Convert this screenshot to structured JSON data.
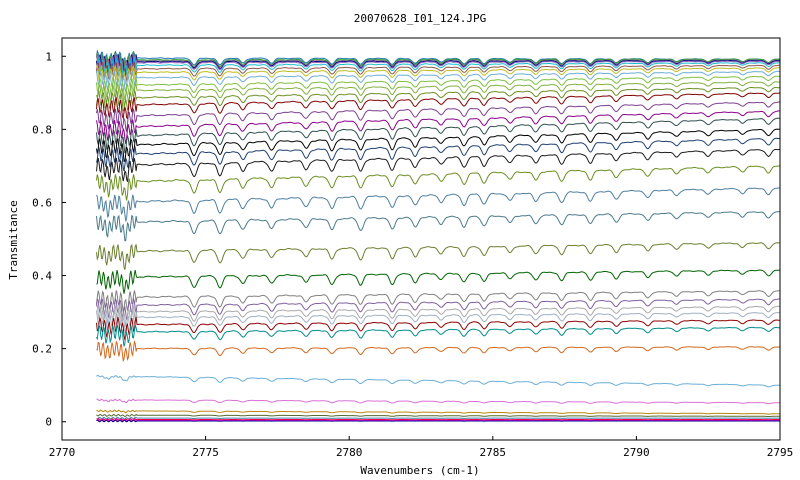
{
  "chart_data": {
    "type": "line",
    "title": "20070628_I01_124.JPG",
    "xlabel": "Wavenumbers (cm-1)",
    "ylabel": "Transmitance",
    "xlim": [
      2770,
      2795
    ],
    "ylim": [
      -0.05,
      1.05
    ],
    "x_data_range": [
      2771.2,
      2795
    ],
    "xticks": [
      2770,
      2775,
      2780,
      2785,
      2790,
      2795
    ],
    "xtick_labels": [
      "2770",
      "2775",
      "2780",
      "2785",
      "2790",
      "2795"
    ],
    "yticks": [
      0,
      0.2,
      0.4,
      0.6,
      0.8,
      1
    ],
    "ytick_labels": [
      "0",
      "0.2",
      "0.4",
      "0.6",
      "0.8",
      "1"
    ],
    "grid": false,
    "legend": "none",
    "absorption_lines_cm1": [
      2771.6,
      2772.2,
      2774.6,
      2775.5,
      2776.3,
      2777.3,
      2778.5,
      2779.4,
      2780.4,
      2781.5,
      2782.3,
      2783.2,
      2784.0,
      2784.7,
      2785.6,
      2786.5,
      2787.4,
      2788.4,
      2789.3,
      2790.4,
      2791.4,
      2792.5,
      2793.7,
      2794.6
    ],
    "series": [
      {
        "color": "#1f77b4",
        "values": [
          0.995,
          0.992
        ]
      },
      {
        "color": "#2ca02c",
        "values": [
          0.99,
          0.992
        ]
      },
      {
        "color": "#7f7f7f",
        "values": [
          0.988,
          0.99
        ]
      },
      {
        "color": "#000080",
        "values": [
          0.985,
          0.988
        ]
      },
      {
        "color": "#9467bd",
        "values": [
          0.982,
          0.986
        ]
      },
      {
        "color": "#17becf",
        "values": [
          0.975,
          0.982
        ]
      },
      {
        "color": "#8c564b",
        "values": [
          0.965,
          0.975
        ]
      },
      {
        "color": "#bcbd22",
        "values": [
          0.955,
          0.968
        ]
      },
      {
        "color": "#6baed6",
        "values": [
          0.94,
          0.958
        ]
      },
      {
        "color": "#7fbf3f",
        "values": [
          0.92,
          0.945
        ]
      },
      {
        "color": "#80b040",
        "values": [
          0.905,
          0.93
        ]
      },
      {
        "color": "#6b8e23",
        "values": [
          0.885,
          0.915
        ]
      },
      {
        "color": "#800000",
        "values": [
          0.865,
          0.9
        ]
      },
      {
        "color": "#7b3f8f",
        "values": [
          0.835,
          0.875
        ]
      },
      {
        "color": "#8b008b",
        "values": [
          0.805,
          0.85
        ]
      },
      {
        "color": "#2f4f4f",
        "values": [
          0.78,
          0.83
        ]
      },
      {
        "color": "#000000",
        "values": [
          0.755,
          0.8
        ]
      },
      {
        "color": "#1f3f6f",
        "values": [
          0.73,
          0.775
        ]
      },
      {
        "color": "#1a1a1a",
        "values": [
          0.7,
          0.745
        ]
      },
      {
        "color": "#6b8e23",
        "values": [
          0.655,
          0.7
        ]
      },
      {
        "color": "#4f7f9f",
        "values": [
          0.6,
          0.64
        ]
      },
      {
        "color": "#4a7a8a",
        "values": [
          0.545,
          0.575
        ]
      },
      {
        "color": "#6b7f2f",
        "values": [
          0.465,
          0.49
        ]
      },
      {
        "color": "#006400",
        "values": [
          0.395,
          0.415
        ]
      },
      {
        "color": "#808080",
        "values": [
          0.34,
          0.358
        ]
      },
      {
        "color": "#7f5f9f",
        "values": [
          0.318,
          0.335
        ]
      },
      {
        "color": "#a9a9a9",
        "values": [
          0.3,
          0.315
        ]
      },
      {
        "color": "#9fb0c0",
        "values": [
          0.285,
          0.298
        ]
      },
      {
        "color": "#8b0000",
        "values": [
          0.265,
          0.278
        ]
      },
      {
        "color": "#008b8b",
        "values": [
          0.245,
          0.258
        ]
      },
      {
        "color": "#d2691e",
        "values": [
          0.2,
          0.205
        ]
      },
      {
        "color": "#6baed6",
        "values": [
          0.125,
          0.1
        ]
      },
      {
        "color": "#da70d6",
        "values": [
          0.06,
          0.052
        ]
      },
      {
        "color": "#b8860b",
        "values": [
          0.03,
          0.022
        ]
      },
      {
        "color": "#556b2f",
        "values": [
          0.018,
          0.015
        ]
      },
      {
        "color": "#4682b4",
        "values": [
          0.01,
          0.01
        ]
      },
      {
        "color": "#ff0000",
        "values": [
          0.006,
          0.006
        ]
      },
      {
        "color": "#ff00ff",
        "values": [
          0.004,
          0.004
        ]
      },
      {
        "color": "#000080",
        "values": [
          0.002,
          0.002
        ]
      }
    ]
  }
}
